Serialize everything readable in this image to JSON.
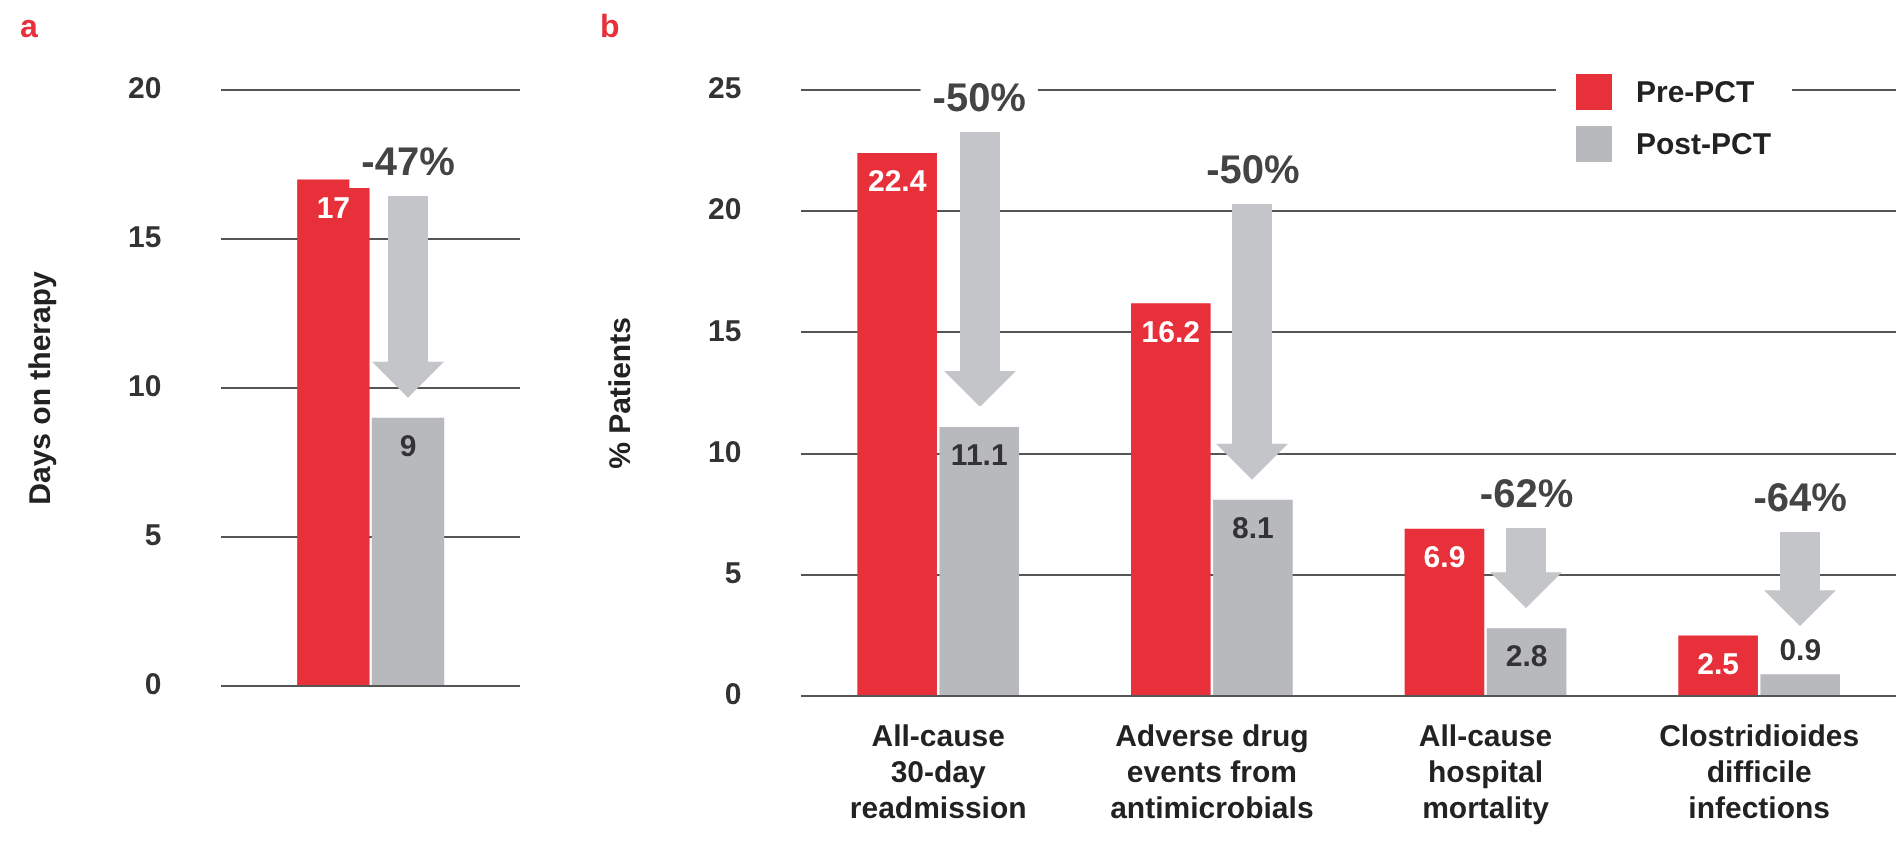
{
  "chart_data": [
    {
      "type": "bar",
      "title": "a",
      "ylabel": "Days on therapy",
      "categories": [
        null
      ],
      "series": [
        {
          "color": "#e8303a",
          "values": [
            17
          ]
        },
        {
          "color": "#b8b9bd",
          "values": [
            9
          ]
        }
      ],
      "ylim": [
        0,
        20
      ],
      "yticks": [
        0,
        5,
        10,
        15,
        20
      ],
      "grid": "y",
      "data_labels": true,
      "legend": false,
      "tick_labels": "y",
      "annotations": [
        "-47%"
      ]
    },
    {
      "type": "bar",
      "title": "b",
      "ylabel": "% Patients",
      "categories": [
        "All-cause 30-day readmission",
        "Adverse drug events from antimicrobials",
        "All-cause hospital mortality",
        "Clostridioides difficile infections"
      ],
      "series": [
        {
          "name": "Pre-PCT",
          "color": "#e8303a",
          "values": [
            22.4,
            16.2,
            6.9,
            2.5
          ]
        },
        {
          "name": "Post-PCT",
          "color": "#b8b9bd",
          "values": [
            11.1,
            8.1,
            2.8,
            0.9
          ]
        }
      ],
      "ylim": [
        0,
        25
      ],
      "yticks": [
        0,
        5,
        10,
        15,
        20,
        25
      ],
      "grid": "y",
      "data_labels": true,
      "legend": "top right",
      "annotations": [
        "-50%",
        "-50%",
        "-62%",
        "-64%"
      ]
    }
  ]
}
